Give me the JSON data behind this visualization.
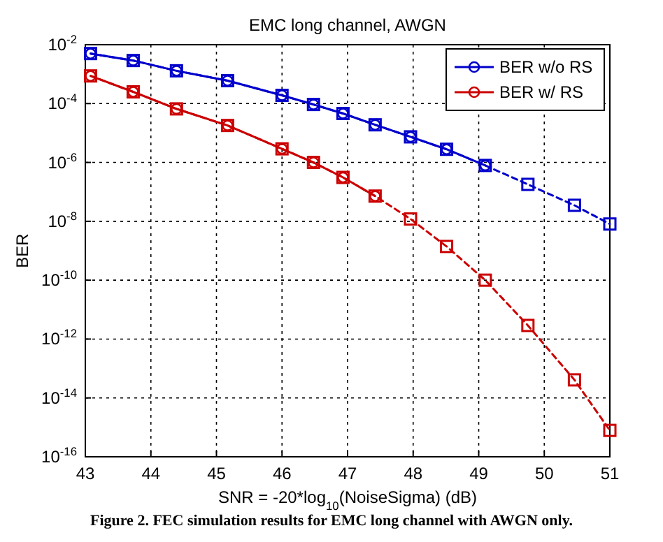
{
  "chart_data": {
    "type": "line",
    "title": "EMC long channel, AWGN",
    "xlabel": "SNR = -20*log$_{10}$(NoiseSigma) (dB)",
    "ylabel": "BER",
    "annotations": [
      "Figure 2. FEC simulation results for EMC long channel with AWGN only."
    ],
    "log": "y",
    "grid": true,
    "legend": "top right",
    "xlim": [
      43,
      51
    ],
    "xticks": [
      43,
      44,
      45,
      46,
      47,
      48,
      49,
      50,
      51
    ],
    "ylim": [
      1e-16,
      0.01
    ],
    "yticks": [
      {
        "value": 0.01,
        "label": "10$^{-2}$"
      },
      {
        "value": 0.0001,
        "label": "10$^{-4}$"
      },
      {
        "value": 1e-06,
        "label": "10$^{-6}$"
      },
      {
        "value": 1e-08,
        "label": "10$^{-8}$"
      },
      {
        "value": 1e-10,
        "label": "10$^{-10}$"
      },
      {
        "value": 1e-12,
        "label": "10$^{-12}$"
      },
      {
        "value": 1e-14,
        "label": "10$^{-14}$"
      },
      {
        "value": 1e-16,
        "label": "10$^{-16}$"
      }
    ],
    "series": [
      {
        "name": "BER w/o RS",
        "color": "#0000cc",
        "marker": "circle",
        "line_style": "solid",
        "x": [
          43.08,
          43.73,
          44.39,
          45.17,
          46,
          46.48,
          46.93,
          47.42,
          47.96,
          48.51,
          49.1
        ],
        "values": [
          0.005,
          0.0029,
          0.0013,
          0.0006,
          0.00019,
          9.3e-05,
          4.6e-05,
          1.9e-05,
          7.4e-06,
          2.8e-06,
          7.9e-07
        ]
      },
      {
        "color": "#0000cc",
        "marker": "square",
        "line_style": "dashed",
        "x": [
          43.08,
          43.73,
          44.39,
          45.17,
          46,
          46.48,
          46.93,
          47.42,
          47.96,
          48.51,
          49.1,
          49.75,
          50.46,
          51
        ],
        "values": [
          0.005,
          0.0029,
          0.0013,
          0.0006,
          0.00019,
          9.3e-05,
          4.6e-05,
          1.9e-05,
          7.4e-06,
          2.8e-06,
          7.9e-07,
          1.8e-07,
          3.5e-08,
          8.1e-09
        ]
      },
      {
        "name": "BER w/ RS",
        "color": "#cc0000",
        "marker": "circle",
        "line_style": "solid",
        "x": [
          43.08,
          43.73,
          44.39,
          45.17,
          46,
          46.48,
          46.93,
          47.42
        ],
        "values": [
          0.00087,
          0.00025,
          6.6e-05,
          1.8e-05,
          2.9e-06,
          1e-06,
          3.1e-07,
          7.2e-08
        ]
      },
      {
        "color": "#cc0000",
        "marker": "square",
        "line_style": "dashed",
        "x": [
          43.08,
          43.73,
          44.39,
          45.17,
          46,
          46.48,
          46.93,
          47.42,
          47.96,
          48.51,
          49.1,
          49.75,
          50.46,
          51
        ],
        "values": [
          0.00087,
          0.00025,
          6.6e-05,
          1.8e-05,
          2.9e-06,
          1e-06,
          3.1e-07,
          7.2e-08,
          1.2e-08,
          1.4e-09,
          1e-10,
          2.9e-12,
          4.1e-14,
          7.9e-16
        ]
      }
    ]
  }
}
